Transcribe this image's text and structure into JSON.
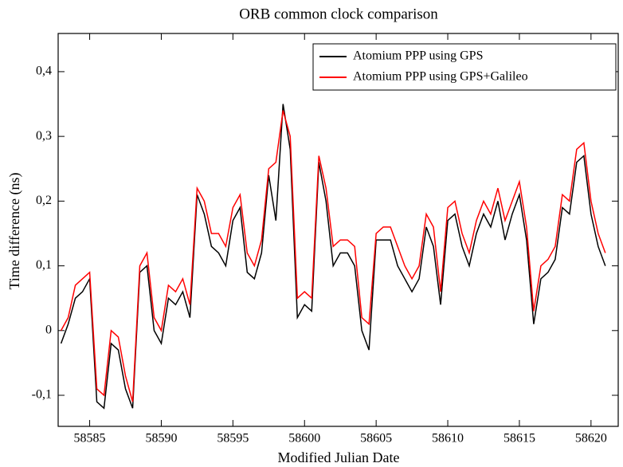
{
  "chart_data": {
    "type": "line",
    "title": "ORB common clock comparison",
    "x_label": "Modified Julian Date",
    "y_label": "Time difference (ns)",
    "x": [
      58583,
      58583.5,
      58584,
      58584.5,
      58585,
      58585.5,
      58586,
      58586.5,
      58587,
      58587.5,
      58588,
      58588.5,
      58589,
      58589.5,
      58590,
      58590.5,
      58591,
      58591.5,
      58592,
      58592.5,
      58593,
      58593.5,
      58594,
      58594.5,
      58595,
      58595.5,
      58596,
      58596.5,
      58597,
      58597.5,
      58598,
      58598.5,
      58599,
      58599.5,
      58600,
      58600.5,
      58601,
      58601.5,
      58602,
      58602.5,
      58603,
      58603.5,
      58604,
      58604.5,
      58605,
      58605.5,
      58606,
      58606.5,
      58607,
      58607.5,
      58608,
      58608.5,
      58609,
      58609.5,
      58610,
      58610.5,
      58611,
      58611.5,
      58612,
      58612.5,
      58613,
      58613.5,
      58614,
      58614.5,
      58615,
      58615.5,
      58616,
      58616.5,
      58617,
      58617.5,
      58618,
      58618.5,
      58619,
      58619.5,
      58620,
      58620.5,
      58621
    ],
    "series": [
      {
        "name": "Atomium PPP using GPS",
        "color": "#000000",
        "values": [
          -0.02,
          0.01,
          0.05,
          0.06,
          0.08,
          -0.11,
          -0.12,
          -0.02,
          -0.03,
          -0.09,
          -0.12,
          0.09,
          0.1,
          0.0,
          -0.02,
          0.05,
          0.04,
          0.06,
          0.02,
          0.21,
          0.18,
          0.13,
          0.12,
          0.1,
          0.17,
          0.19,
          0.09,
          0.08,
          0.12,
          0.24,
          0.17,
          0.35,
          0.28,
          0.02,
          0.04,
          0.03,
          0.26,
          0.2,
          0.1,
          0.12,
          0.12,
          0.1,
          0.0,
          -0.03,
          0.14,
          0.14,
          0.14,
          0.1,
          0.08,
          0.06,
          0.08,
          0.16,
          0.13,
          0.04,
          0.17,
          0.18,
          0.13,
          0.1,
          0.15,
          0.18,
          0.16,
          0.2,
          0.14,
          0.18,
          0.21,
          0.14,
          0.01,
          0.08,
          0.09,
          0.11,
          0.19,
          0.18,
          0.26,
          0.27,
          0.18,
          0.13,
          0.1
        ]
      },
      {
        "name": "Atomium PPP using GPS+Galileo",
        "color": "#ff0000",
        "values": [
          0.0,
          0.02,
          0.07,
          0.08,
          0.09,
          -0.09,
          -0.1,
          0.0,
          -0.01,
          -0.07,
          -0.11,
          0.1,
          0.12,
          0.02,
          0.0,
          0.07,
          0.06,
          0.08,
          0.04,
          0.22,
          0.2,
          0.15,
          0.15,
          0.13,
          0.19,
          0.21,
          0.12,
          0.1,
          0.14,
          0.25,
          0.26,
          0.34,
          0.3,
          0.05,
          0.06,
          0.05,
          0.27,
          0.22,
          0.13,
          0.14,
          0.14,
          0.13,
          0.02,
          0.01,
          0.15,
          0.16,
          0.16,
          0.13,
          0.1,
          0.08,
          0.1,
          0.18,
          0.16,
          0.06,
          0.19,
          0.2,
          0.15,
          0.12,
          0.17,
          0.2,
          0.18,
          0.22,
          0.17,
          0.2,
          0.23,
          0.16,
          0.03,
          0.1,
          0.11,
          0.13,
          0.21,
          0.2,
          0.28,
          0.29,
          0.2,
          0.15,
          0.12
        ]
      }
    ],
    "xlim": [
      58582.8,
      58621.9
    ],
    "ylim": [
      -0.148,
      0.459
    ],
    "xticks": [
      58585,
      58590,
      58595,
      58600,
      58605,
      58610,
      58615,
      58620
    ],
    "yticks": [
      {
        "value": -0.1,
        "label": "-0,1"
      },
      0,
      {
        "value": 0.1,
        "label": "0,1"
      },
      {
        "value": 0.2,
        "label": "0,2"
      },
      {
        "value": 0.3,
        "label": "0,3"
      },
      {
        "value": 0.4,
        "label": "0,4"
      }
    ],
    "legend": "upper right"
  }
}
